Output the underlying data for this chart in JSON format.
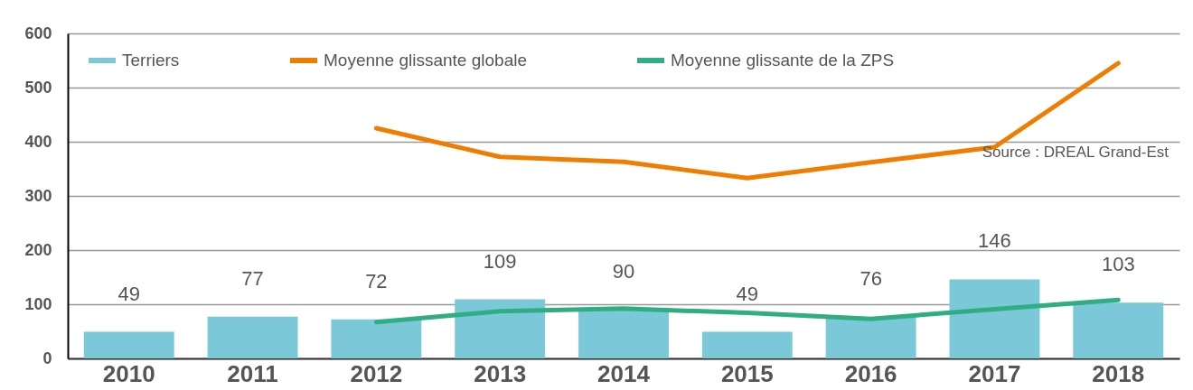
{
  "chart_data": {
    "type": "bar",
    "categories": [
      "2010",
      "2011",
      "2012",
      "2013",
      "2014",
      "2015",
      "2016",
      "2017",
      "2018"
    ],
    "series": [
      {
        "name": "Terriers",
        "type": "bar",
        "color": "#7ac8d8",
        "values": [
          49,
          77,
          72,
          109,
          90,
          49,
          76,
          146,
          103
        ],
        "value_labels": [
          "49",
          "77",
          "72",
          "109",
          "90",
          "49",
          "76",
          "146",
          "103"
        ]
      },
      {
        "name": "Moyenne glissante globale",
        "type": "line",
        "color": "#f07d00",
        "values": [
          null,
          null,
          425,
          372,
          363,
          333,
          362,
          390,
          545
        ]
      },
      {
        "name": "Moyenne glissante de la ZPS",
        "type": "line",
        "color": "#2fae84",
        "values": [
          null,
          null,
          67,
          87,
          92,
          84,
          73,
          91,
          108
        ]
      }
    ],
    "ylim": [
      0,
      600
    ],
    "yticks": [
      0,
      100,
      200,
      300,
      400,
      500,
      600
    ],
    "grid": "y",
    "legend": "top",
    "annotations": [
      "Source : DREAL Grand-Est"
    ]
  }
}
